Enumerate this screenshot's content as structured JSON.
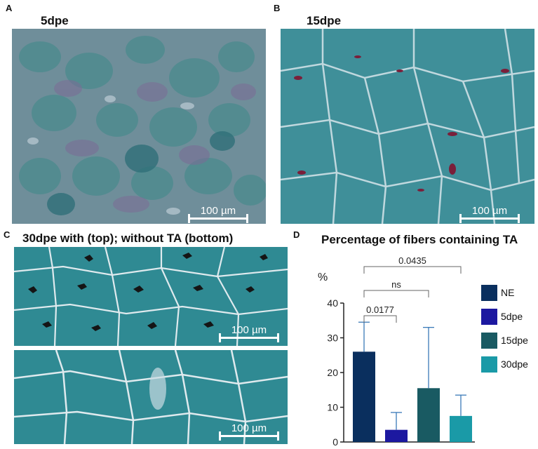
{
  "panels": {
    "A": {
      "letter": "A",
      "title": "5dpe",
      "scale": "100 µm"
    },
    "B": {
      "letter": "B",
      "title": "15dpe",
      "scale": "100 µm"
    },
    "C": {
      "letter": "C",
      "title": "30dpe with (top); without TA (bottom)",
      "scale_top": "100 µm",
      "scale_bottom": "100 µm"
    },
    "D": {
      "letter": "D",
      "title": "Percentage of fibers containing TA"
    }
  },
  "colors": {
    "NE": "#0a2f5e",
    "5dpe": "#1c18a0",
    "15dpe": "#195a62",
    "30dpe": "#1a9aa7",
    "error": "#3a7ab8",
    "tissue_a": "#5f8f98",
    "tissue_b": "#3f8f99",
    "tissue_c": "#2f8a93"
  },
  "chart_data": {
    "type": "bar",
    "categories": [
      "NE",
      "5dpe",
      "15dpe",
      "30dpe"
    ],
    "values": [
      26,
      3.5,
      15.5,
      7.5
    ],
    "errors": [
      8.5,
      5,
      17.5,
      6
    ],
    "ylabel": "%",
    "ylim": [
      0,
      40
    ],
    "yticks": [
      0,
      10,
      20,
      30,
      40
    ],
    "comparisons": [
      {
        "from": 0,
        "to": 1,
        "label": "0.0177"
      },
      {
        "from": 0,
        "to": 2,
        "label": "ns"
      },
      {
        "from": 0,
        "to": 3,
        "label": "0.0435"
      }
    ],
    "legend": [
      "NE",
      "5dpe",
      "15dpe",
      "30dpe"
    ],
    "legend_position": "right"
  }
}
